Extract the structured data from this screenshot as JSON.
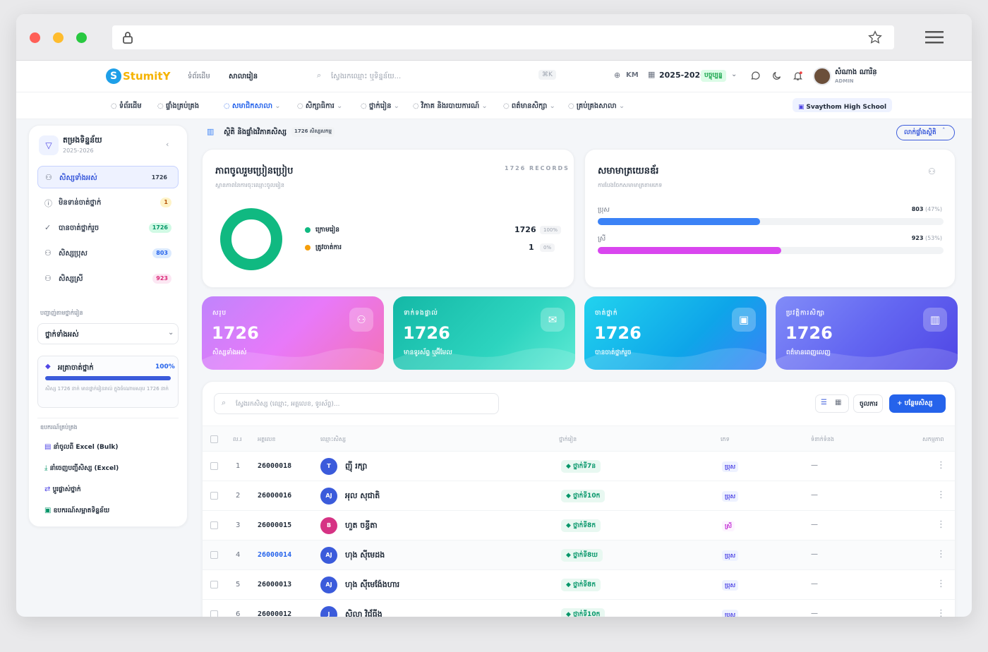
{
  "browser": {
    "search_icon": "lock-icon",
    "bookmark_icon": "star-icon",
    "menu_icon": "hamburger-icon"
  },
  "app": {
    "logo": "StumitY",
    "nav_links": [
      "ទំព័រដើម",
      "សាលារៀន"
    ],
    "search_placeholder": "ស្វែងរកឈ្មោះ ឬទិន្នន័យ...",
    "search_shortcut": "⌘K",
    "language": "KM",
    "academic_year": "2025-2026",
    "year_badge": "បច្ចុប្បន្ន",
    "user_name": "សំណាង ណារិន",
    "user_role": "ADMIN",
    "school": "Svaythom High School"
  },
  "subnav": [
    {
      "label": "ទំព័រដើម",
      "icon": "gauge-icon"
    },
    {
      "label": "ផ្ទាំងគ្រប់គ្រង",
      "icon": "chart-icon"
    },
    {
      "label": "សមាជិកសាលា",
      "icon": "users-icon",
      "active": true
    },
    {
      "label": "សិក្សាធិការ",
      "icon": "graduation-icon"
    },
    {
      "label": "ថ្នាក់រៀន",
      "icon": "clipboard-icon"
    },
    {
      "label": "វិភាគ និងរបាយការណ៍",
      "icon": "clock-icon"
    },
    {
      "label": "ពត៌មានសិក្សា",
      "icon": "clock-icon"
    },
    {
      "label": "គ្រប់គ្រងសាលា",
      "icon": "building-icon"
    }
  ],
  "sidebar": {
    "title": "តម្រងទិន្នន័យ",
    "subtitle": "2025-2026",
    "filters": [
      {
        "label": "សិស្សទាំងអស់",
        "count": "1726"
      },
      {
        "label": "មិនទាន់ចាត់ថ្នាក់",
        "count": "1"
      },
      {
        "label": "បានចាត់ថ្នាក់រួច",
        "count": "1726"
      },
      {
        "label": "សិស្សប្រុស",
        "count": "803"
      },
      {
        "label": "សិស្សស្រី",
        "count": "923"
      }
    ],
    "class_section_title": "បញ្ជាញ់តាមថ្នាក់រៀន",
    "class_select": "ថ្នាក់ទាំងអស់",
    "progress_title": "អត្រាចាត់ថ្នាក់",
    "progress_value": "100%",
    "progress_fraction": 1.0,
    "progress_note": "សិស្ស 1726 នាក់ មានថ្នាក់រៀនរាល់ ក្នុងចំណោមសរុប 1726 នាក់",
    "tools_title": "ឧបករណ៍គ្រប់គ្រង",
    "tools": [
      {
        "label": "នាំចូលពី Excel (Bulk)",
        "icon": "file-icon"
      },
      {
        "label": "នាំចេញបញ្ជីសិស្ស (Excel)",
        "icon": "download-icon"
      },
      {
        "label": "ប្ដូរផ្លាស់ថ្នាក់",
        "icon": "swap-icon"
      },
      {
        "label": "ឧបករណ៍សម្អាតទិន្នន័យ",
        "icon": "clipboard-icon"
      }
    ]
  },
  "main": {
    "header_title": "ស្ថិតិ និងផ្ទាំងវិភាគសិស្ស",
    "header_badge": "1726 សិស្សសកម្ម",
    "toggle_label": "លាក់ផ្ទាំងស្ថិតិ",
    "overview": {
      "title": "ភាពចូលរួមប្រៀនប្រៀប",
      "subtitle": "ស្ថានភាពនៃការចុះឈ្មោះចូលរៀន",
      "records": "1726 RECORDS",
      "legend": [
        {
          "label": "ក្រោមរៀន",
          "value": "1726",
          "pct": "100%",
          "color": "#10b981"
        },
        {
          "label": "ត្រូវចាត់ការ",
          "value": "1",
          "pct": "0%",
          "color": "#f59e0b"
        }
      ]
    },
    "gender": {
      "title": "សមាមាត្រយេនឌ័រ",
      "subtitle": "ការបែងចែកសមាមាត្រតាមភេទ",
      "rows": [
        {
          "label": "ប្រុស",
          "value": "803",
          "pct": "(47%)",
          "fraction": 0.47,
          "color": "#3b82f6"
        },
        {
          "label": "ស្រី",
          "value": "923",
          "pct": "(53%)",
          "fraction": 0.53,
          "color": "#d946ef"
        }
      ]
    },
    "stats": [
      {
        "label": "សរុប",
        "value": "1726",
        "sub": "សិស្សទាំងអស់",
        "icon": "users-icon"
      },
      {
        "label": "ទាក់ទងផ្ទាល់",
        "value": "1726",
        "sub": "មានទូរស័ព្ទ ឬអ៊ីមែល",
        "icon": "mail-icon"
      },
      {
        "label": "ចាត់ថ្នាក់",
        "value": "1726",
        "sub": "បានចាត់ថ្នាក់រួច",
        "icon": "briefcase-icon"
      },
      {
        "label": "ប្រវត្តិការសិក្សា",
        "value": "1726",
        "sub": "ពត៌មានពេញលេញ",
        "icon": "book-icon"
      }
    ],
    "table": {
      "search_placeholder": "ស្វែងរកសិស្ស (ឈ្មោះ, អត្តលេខ, ទូរស័ព្ទ)...",
      "sort_label": "ចូលការ",
      "add_label": "+ បន្ថែមសិស្ស",
      "columns": [
        "ល.រ",
        "អត្តលេខ",
        "ឈ្មោះសិស្ស",
        "ថ្នាក់រៀន",
        "ភេទ",
        "ទំនាក់ទំនង",
        "សកម្មភាព"
      ],
      "rows": [
        {
          "no": "1",
          "id": "26000018",
          "initials": "T",
          "name": "ញ៉ី រក្សា",
          "class": "ថ្នាក់ទី7ន",
          "gender": "ប្រុស",
          "contact": "—",
          "avatar_color": "#3b5bdb"
        },
        {
          "no": "2",
          "id": "26000016",
          "initials": "AJ",
          "name": "អុល សុជាតិ",
          "class": "ថ្នាក់ទី10ក",
          "gender": "ប្រុស",
          "contact": "—",
          "avatar_color": "#3b5bdb"
        },
        {
          "no": "3",
          "id": "26000015",
          "initials": "B",
          "name": "ហួត ចន្ធីតា",
          "class": "ថ្នាក់ទី8ក",
          "gender": "ស្រី",
          "contact": "—",
          "avatar_color": "#d63384"
        },
        {
          "no": "4",
          "id": "26000014",
          "initials": "AJ",
          "name": "ហុង ស៊ីមេដង",
          "class": "ថ្នាក់ទី8ឃ",
          "gender": "ប្រុស",
          "contact": "—",
          "avatar_color": "#3b5bdb"
        },
        {
          "no": "5",
          "id": "26000013",
          "initials": "AJ",
          "name": "ហុង ស៊ីមេង៉ែងហារ",
          "class": "ថ្នាក់ទី8ក",
          "gender": "ប្រុស",
          "contact": "—",
          "avatar_color": "#3b5bdb"
        },
        {
          "no": "6",
          "id": "26000012",
          "initials": "J",
          "name": "សិលា វិជ័ធីង",
          "class": "ថ្នាក់ទី10ក",
          "gender": "ប្រុស",
          "contact": "—",
          "avatar_color": "#3b5bdb"
        }
      ]
    }
  }
}
